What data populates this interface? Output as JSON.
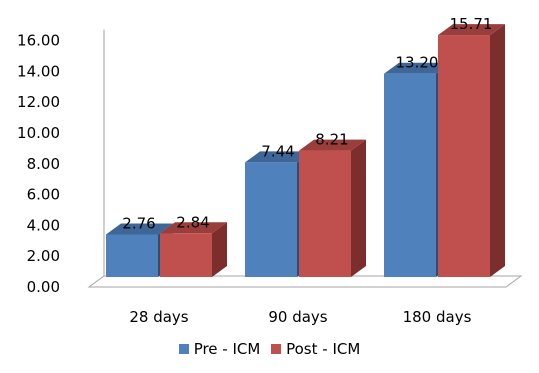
{
  "chart_data": {
    "type": "bar",
    "categories": [
      "28 days",
      "90 days",
      "180 days"
    ],
    "series": [
      {
        "name": "Pre - ICM",
        "values": [
          2.76,
          7.44,
          13.2
        ],
        "labels": [
          "2.76",
          "7.44",
          "13.20"
        ],
        "color": "#4F81BD",
        "top": "#3E6798",
        "side": "#2C4D75"
      },
      {
        "name": "Post - ICM",
        "values": [
          2.84,
          8.21,
          15.71
        ],
        "labels": [
          "2.84",
          "8.21",
          "15.71"
        ],
        "color": "#C0504D",
        "top": "#9A3E3B",
        "side": "#7B2E2C"
      }
    ],
    "yticks": [
      "0.00",
      "2.00",
      "4.00",
      "6.00",
      "8.00",
      "10.00",
      "12.00",
      "14.00",
      "16.00"
    ],
    "ylim": [
      0,
      16
    ],
    "grid": false,
    "legend": "bottom",
    "style": "3d-clustered-column"
  }
}
